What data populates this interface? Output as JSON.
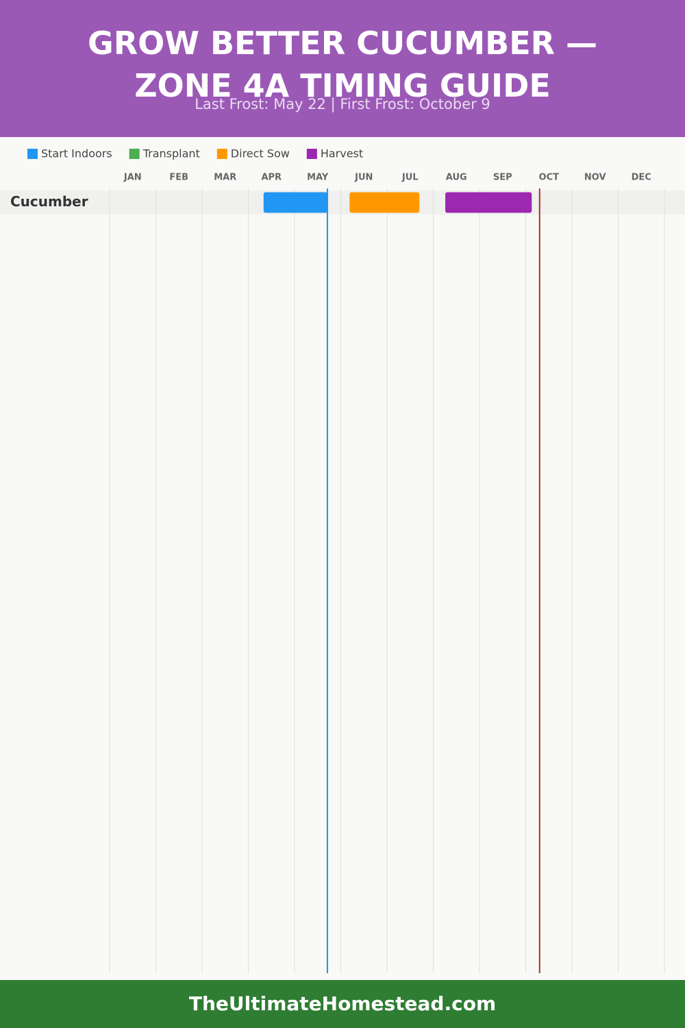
{
  "chart_data": {
    "type": "gantt",
    "title": "GROW BETTER CUCUMBER — ZONE 4A TIMING GUIDE",
    "subtitle": "Last Frost: May 22 | First Frost: October 9",
    "xlim": [
      0,
      12
    ],
    "xticks": [
      {
        "value": 0.5,
        "label": "JAN"
      },
      {
        "value": 1.5,
        "label": "FEB"
      },
      {
        "value": 2.5,
        "label": "MAR"
      },
      {
        "value": 3.5,
        "label": "APR"
      },
      {
        "value": 4.5,
        "label": "MAY"
      },
      {
        "value": 5.5,
        "label": "JUN"
      },
      {
        "value": 6.5,
        "label": "JUL"
      },
      {
        "value": 7.5,
        "label": "AUG"
      },
      {
        "value": 8.5,
        "label": "SEP"
      },
      {
        "value": 9.5,
        "label": "OCT"
      },
      {
        "value": 10.5,
        "label": "NOV"
      },
      {
        "value": 11.5,
        "label": "DEC"
      }
    ],
    "categories": [
      "Cucumber"
    ],
    "series": [
      {
        "name": "Start Indoors",
        "color": "#2196f3",
        "values": [
          [
            3.33,
            4.71
          ]
        ]
      },
      {
        "name": "Transplant",
        "color": "#4caf50",
        "values": [
          null
        ]
      },
      {
        "name": "Direct Sow",
        "color": "#ff9800",
        "values": [
          [
            5.19,
            6.7
          ]
        ]
      },
      {
        "name": "Harvest",
        "color": "#9c27b0",
        "values": [
          [
            7.26,
            9.13
          ]
        ]
      }
    ],
    "markers": [
      {
        "value": 4.71,
        "color": "#2e8fd6"
      },
      {
        "value": 9.3,
        "color": "#a93226"
      }
    ]
  },
  "footer": "TheUltimateHomestead.com"
}
